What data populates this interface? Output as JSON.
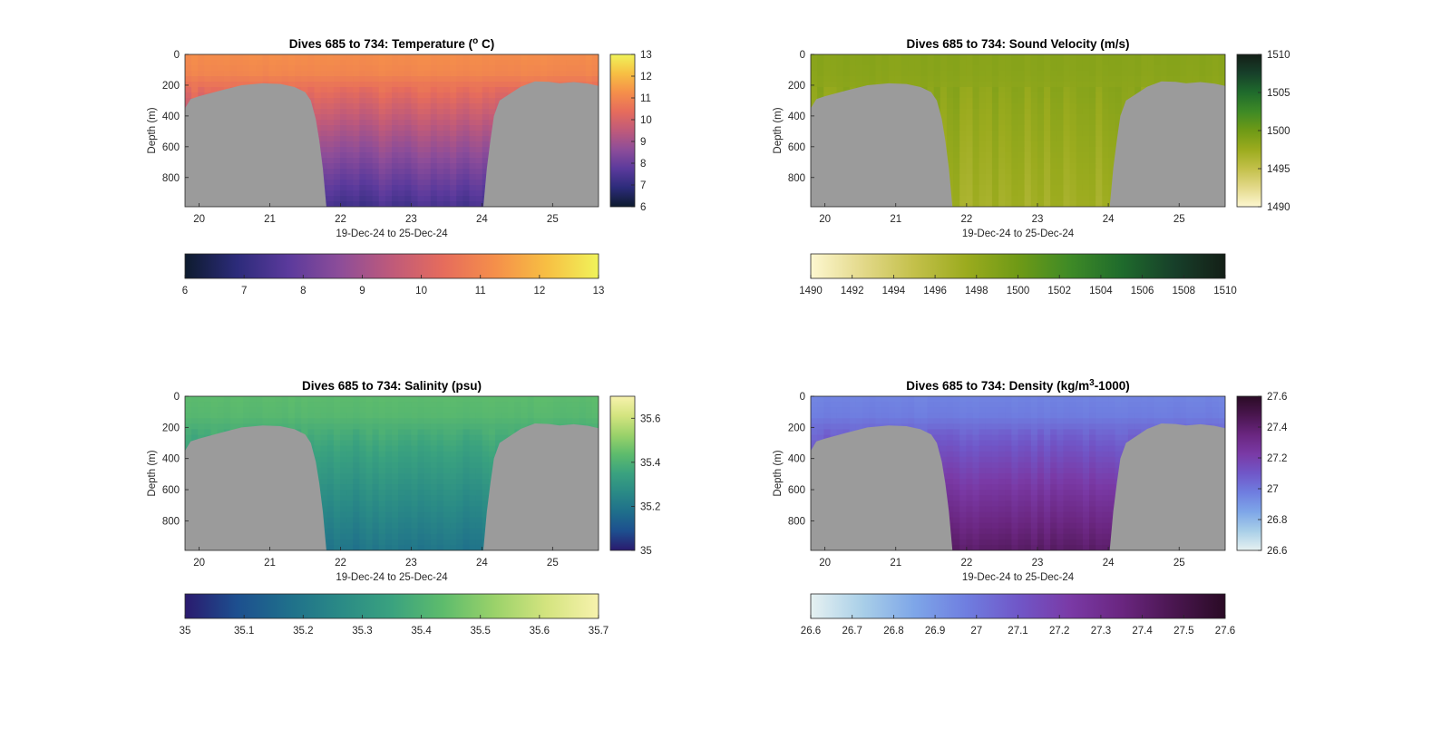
{
  "figure": {
    "background": "#ffffff",
    "terrain_color": "#9b9b9b"
  },
  "chart_data": [
    {
      "id": "temperature",
      "type": "heatmap",
      "title_main": "Dives 685 to 734: Temperature (",
      "title_sup": "o",
      "title_end": " C)",
      "xlabel": "19-Dec-24 to 25-Dec-24",
      "ylabel": "Depth (m)",
      "x_ticks": [
        "20",
        "21",
        "22",
        "23",
        "24",
        "25"
      ],
      "y_ticks": [
        "0",
        "200",
        "400",
        "600",
        "800"
      ],
      "xlim": [
        19.8,
        25.65
      ],
      "ylim": [
        0,
        990
      ],
      "clim": [
        6,
        13
      ],
      "colorbar_right_ticks": [
        "13",
        "12",
        "11",
        "10",
        "9",
        "8",
        "7",
        "6"
      ],
      "colorbar_bottom_ticks": [
        "6",
        "7",
        "8",
        "9",
        "10",
        "11",
        "12",
        "13"
      ],
      "colormap": [
        "#0d1b2e",
        "#2c2b7a",
        "#5b3a9c",
        "#8d4d99",
        "#bf5a7a",
        "#e66c5c",
        "#f58f4a",
        "#f7bf43",
        "#f0f35a"
      ],
      "field": {
        "surface": 11.0,
        "deep": 7.4
      }
    },
    {
      "id": "sound-velocity",
      "type": "heatmap",
      "title_main": "Dives 685 to 734: Sound Velocity (m/s)",
      "title_sup": "",
      "title_end": "",
      "xlabel": "19-Dec-24 to 25-Dec-24",
      "ylabel": "Depth (m)",
      "x_ticks": [
        "20",
        "21",
        "22",
        "23",
        "24",
        "25"
      ],
      "y_ticks": [
        "0",
        "200",
        "400",
        "600",
        "800"
      ],
      "xlim": [
        19.8,
        25.65
      ],
      "ylim": [
        0,
        990
      ],
      "clim": [
        1490,
        1510
      ],
      "colorbar_right_ticks": [
        "1510",
        "1505",
        "1500",
        "1495",
        "1490"
      ],
      "colorbar_bottom_ticks": [
        "1490",
        "1492",
        "1494",
        "1496",
        "1498",
        "1500",
        "1502",
        "1504",
        "1506",
        "1508",
        "1510"
      ],
      "colormap": [
        "#fdf7d0",
        "#e3d98a",
        "#c3c04a",
        "#9bab1e",
        "#6f9a16",
        "#3e8a26",
        "#1f6b2c",
        "#17402a",
        "#141f17"
      ],
      "field": {
        "surface": 1498.5,
        "deep": 1497.0
      }
    },
    {
      "id": "salinity",
      "type": "heatmap",
      "title_main": "Dives 685 to 734: Salinity (psu)",
      "title_sup": "",
      "title_end": "",
      "xlabel": "19-Dec-24 to 25-Dec-24",
      "ylabel": "Depth (m)",
      "x_ticks": [
        "20",
        "21",
        "22",
        "23",
        "24",
        "25"
      ],
      "y_ticks": [
        "0",
        "200",
        "400",
        "600",
        "800"
      ],
      "xlim": [
        19.8,
        25.65
      ],
      "ylim": [
        0,
        990
      ],
      "clim": [
        35,
        35.7
      ],
      "colorbar_right_ticks": [
        "35.6",
        "35.4",
        "35.2",
        "35"
      ],
      "colorbar_bottom_ticks": [
        "35",
        "35.1",
        "35.2",
        "35.3",
        "35.4",
        "35.5",
        "35.6",
        "35.7"
      ],
      "colormap": [
        "#2a1a6e",
        "#1d4f8f",
        "#1f6f8b",
        "#2a8a86",
        "#3aa27f",
        "#5ebc6c",
        "#9bd26a",
        "#d4e47f",
        "#f7f2ad"
      ],
      "field": {
        "surface": 35.42,
        "deep": 35.2
      }
    },
    {
      "id": "density",
      "type": "heatmap",
      "title_main": "Dives 685 to 734: Density (kg/m",
      "title_sup": "3",
      "title_end": "-1000)",
      "xlabel": "19-Dec-24 to 25-Dec-24",
      "ylabel": "Depth (m)",
      "x_ticks": [
        "20",
        "21",
        "22",
        "23",
        "24",
        "25"
      ],
      "y_ticks": [
        "0",
        "200",
        "400",
        "600",
        "800"
      ],
      "xlim": [
        19.8,
        25.65
      ],
      "ylim": [
        0,
        990
      ],
      "clim": [
        26.6,
        27.6
      ],
      "colorbar_right_ticks": [
        "27.6",
        "27.4",
        "27.2",
        "27",
        "26.8",
        "26.6"
      ],
      "colorbar_bottom_ticks": [
        "26.6",
        "26.7",
        "26.8",
        "26.9",
        "27",
        "27.1",
        "27.2",
        "27.3",
        "27.4",
        "27.5",
        "27.6"
      ],
      "colormap": [
        "#e6f1f1",
        "#a9cfe8",
        "#7ea6e8",
        "#6f7ee0",
        "#7057c8",
        "#7a3aa6",
        "#6a2680",
        "#4a1650",
        "#2a0b25"
      ],
      "field": {
        "surface": 26.98,
        "deep": 27.4
      }
    }
  ]
}
